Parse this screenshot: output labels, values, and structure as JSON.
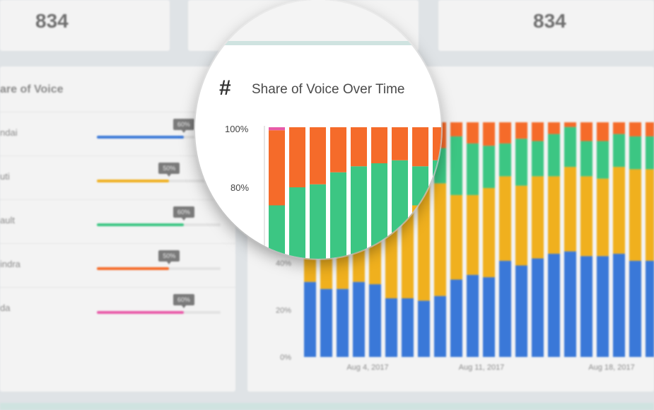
{
  "stats": {
    "left_value": "834",
    "right_value": "834"
  },
  "share_of_voice": {
    "title": "are of Voice",
    "rows": [
      {
        "label": "ndai",
        "percent": 60,
        "tip": "60%",
        "color": "#3a78d8"
      },
      {
        "label": "uti",
        "percent": 50,
        "tip": "50%",
        "color": "#f0b01e"
      },
      {
        "label": "ault",
        "percent": 60,
        "tip": "60%",
        "color": "#3cc683"
      },
      {
        "label": "indra",
        "percent": 50,
        "tip": "50%",
        "color": "#f56b2a"
      },
      {
        "label": "da",
        "percent": 60,
        "tip": "60%",
        "color": "#e85aa8"
      }
    ]
  },
  "over_time": {
    "hash": "#",
    "title": "Share of Voice Over Time",
    "mag_ticks": [
      "100%",
      "80%"
    ],
    "y_ticks": [
      "40%",
      "20%",
      "0%"
    ],
    "x_ticks": [
      "Aug 4, 2017",
      "Aug 11, 2017",
      "Aug 18, 2017"
    ]
  },
  "chart_data": {
    "type": "bar",
    "stacked": true,
    "ylim": [
      0,
      100
    ],
    "yticks": [
      "0%",
      "20%",
      "40%",
      "80%",
      "100%"
    ],
    "x_tick_labels": [
      "Aug 4, 2017",
      "Aug 11, 2017",
      "Aug 18, 2017"
    ],
    "colors": [
      "#3a78d8",
      "#f0b01e",
      "#3cc683",
      "#f56b2a",
      "#e85aa8"
    ],
    "series": [
      {
        "values": [
          32,
          29,
          29,
          32,
          31,
          25,
          25,
          24,
          26,
          33,
          35,
          34,
          41,
          39,
          42,
          44,
          45,
          43,
          43,
          44,
          41,
          41
        ]
      },
      {
        "values": [
          16,
          18,
          18,
          19,
          24,
          32,
          40,
          50,
          48,
          36,
          34,
          38,
          36,
          34,
          35,
          33,
          36,
          34,
          33,
          37,
          39,
          39
        ]
      },
      {
        "values": [
          26,
          33,
          34,
          34,
          32,
          31,
          24,
          13,
          15,
          25,
          22,
          18,
          14,
          20,
          15,
          18,
          17,
          15,
          16,
          14,
          14,
          14
        ]
      },
      {
        "values": [
          25,
          20,
          19,
          15,
          13,
          12,
          11,
          13,
          11,
          6,
          9,
          10,
          9,
          7,
          8,
          5,
          2,
          8,
          8,
          5,
          6,
          6
        ]
      },
      {
        "values": [
          1,
          0,
          0,
          0,
          0,
          0,
          0,
          0,
          0,
          0,
          0,
          0,
          0,
          0,
          0,
          0,
          0,
          0,
          0,
          0,
          0,
          0
        ]
      }
    ]
  }
}
